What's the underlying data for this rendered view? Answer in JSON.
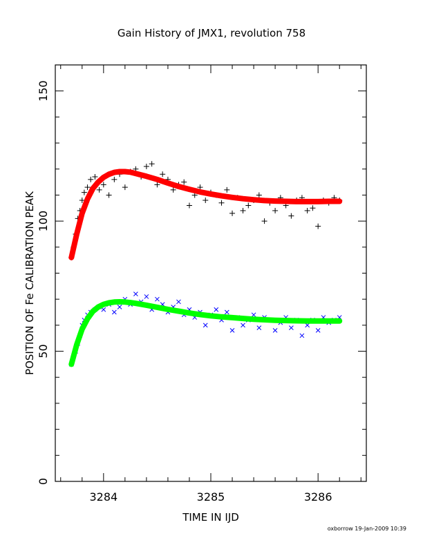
{
  "chart_data": {
    "type": "scatter",
    "title": "Gain History of JMX1, revolution 758",
    "xlabel": "TIME IN IJD",
    "ylabel": "POSITION OF Fe CALIBRATION PEAK",
    "xlim": [
      3283.55,
      3286.45
    ],
    "ylim": [
      0,
      160
    ],
    "x_ticks": [
      "3284",
      "3285",
      "3286"
    ],
    "x_tick_values": [
      3284,
      3285,
      3286
    ],
    "y_ticks": [
      "0",
      "50",
      "100",
      "150"
    ],
    "y_tick_values": [
      0,
      50,
      100,
      150
    ],
    "grid": false,
    "footer": "oxborrow 19-Jan-2009 10:39",
    "series": [
      {
        "marker": "plus",
        "color": "#000000",
        "x": [
          3283.7,
          3283.72,
          3283.74,
          3283.76,
          3283.78,
          3283.8,
          3283.82,
          3283.85,
          3283.88,
          3283.92,
          3283.96,
          3284.0,
          3284.05,
          3284.1,
          3284.15,
          3284.2,
          3284.25,
          3284.3,
          3284.35,
          3284.4,
          3284.45,
          3284.5,
          3284.55,
          3284.6,
          3284.65,
          3284.7,
          3284.75,
          3284.8,
          3284.85,
          3284.9,
          3284.95,
          3285.0,
          3285.05,
          3285.1,
          3285.15,
          3285.2,
          3285.25,
          3285.3,
          3285.35,
          3285.4,
          3285.45,
          3285.5,
          3285.55,
          3285.6,
          3285.65,
          3285.7,
          3285.75,
          3285.8,
          3285.85,
          3285.9,
          3285.95,
          3286.0,
          3286.05,
          3286.1,
          3286.15,
          3286.2
        ],
        "y": [
          86,
          90,
          95,
          101,
          104,
          108,
          111,
          113,
          116,
          117,
          112,
          114,
          110,
          116,
          118,
          113,
          119,
          120,
          117,
          121,
          122,
          114,
          118,
          116,
          112,
          114,
          115,
          106,
          110,
          113,
          108,
          111,
          110,
          107,
          112,
          103,
          109,
          104,
          106,
          108,
          110,
          100,
          107,
          104,
          109,
          106,
          102,
          108,
          109,
          104,
          105,
          98,
          108,
          107,
          109,
          108
        ]
      },
      {
        "marker": "cross",
        "color": "#0000ff",
        "x": [
          3283.7,
          3283.72,
          3283.74,
          3283.76,
          3283.78,
          3283.8,
          3283.82,
          3283.85,
          3283.88,
          3283.92,
          3283.96,
          3284.0,
          3284.05,
          3284.1,
          3284.15,
          3284.2,
          3284.25,
          3284.3,
          3284.35,
          3284.4,
          3284.45,
          3284.5,
          3284.55,
          3284.6,
          3284.65,
          3284.7,
          3284.75,
          3284.8,
          3284.85,
          3284.9,
          3284.95,
          3285.0,
          3285.05,
          3285.1,
          3285.15,
          3285.2,
          3285.25,
          3285.3,
          3285.35,
          3285.4,
          3285.45,
          3285.5,
          3285.55,
          3285.6,
          3285.65,
          3285.7,
          3285.75,
          3285.8,
          3285.85,
          3285.9,
          3285.95,
          3286.0,
          3286.05,
          3286.1,
          3286.15,
          3286.2
        ],
        "y": [
          45,
          48,
          50,
          53,
          56,
          60,
          62,
          64,
          65,
          66,
          67,
          66,
          68,
          65,
          67,
          70,
          68,
          72,
          69,
          71,
          66,
          70,
          68,
          65,
          67,
          69,
          64,
          66,
          63,
          65,
          60,
          64,
          66,
          62,
          65,
          58,
          63,
          60,
          62,
          64,
          59,
          63,
          62,
          58,
          61,
          63,
          59,
          62,
          56,
          60,
          62,
          58,
          63,
          61,
          62,
          63
        ]
      },
      {
        "marker": "line",
        "color": "#ff0000",
        "x": [
          3283.7,
          3283.75,
          3283.8,
          3283.85,
          3283.9,
          3283.95,
          3284.0,
          3284.05,
          3284.1,
          3284.15,
          3284.2,
          3284.25,
          3284.3,
          3284.4,
          3284.5,
          3284.6,
          3284.7,
          3284.8,
          3284.9,
          3285.0,
          3285.1,
          3285.2,
          3285.3,
          3285.4,
          3285.5,
          3285.6,
          3285.7,
          3285.8,
          3285.9,
          3286.0,
          3286.1,
          3286.2
        ],
        "y": [
          86,
          95,
          103,
          108.5,
          112.5,
          115,
          116.8,
          118,
          118.7,
          119,
          119,
          118.8,
          118.3,
          117.2,
          116,
          114.6,
          113.3,
          112.2,
          111.2,
          110.4,
          109.7,
          109.1,
          108.6,
          108.2,
          107.9,
          107.7,
          107.6,
          107.5,
          107.5,
          107.5,
          107.6,
          107.6
        ]
      },
      {
        "marker": "line",
        "color": "#00ff00",
        "x": [
          3283.7,
          3283.75,
          3283.8,
          3283.85,
          3283.9,
          3283.95,
          3284.0,
          3284.05,
          3284.1,
          3284.15,
          3284.2,
          3284.25,
          3284.3,
          3284.4,
          3284.5,
          3284.6,
          3284.7,
          3284.8,
          3284.9,
          3285.0,
          3285.1,
          3285.2,
          3285.3,
          3285.4,
          3285.5,
          3285.6,
          3285.7,
          3285.8,
          3285.9,
          3286.0,
          3286.1,
          3286.2
        ],
        "y": [
          45,
          52.5,
          58.5,
          62.5,
          65.3,
          67,
          68,
          68.6,
          68.9,
          69,
          68.9,
          68.7,
          68.4,
          67.7,
          66.9,
          66.1,
          65.4,
          64.7,
          64.1,
          63.6,
          63.2,
          62.9,
          62.6,
          62.3,
          62.1,
          61.9,
          61.8,
          61.7,
          61.6,
          61.6,
          61.6,
          61.6
        ]
      }
    ]
  }
}
